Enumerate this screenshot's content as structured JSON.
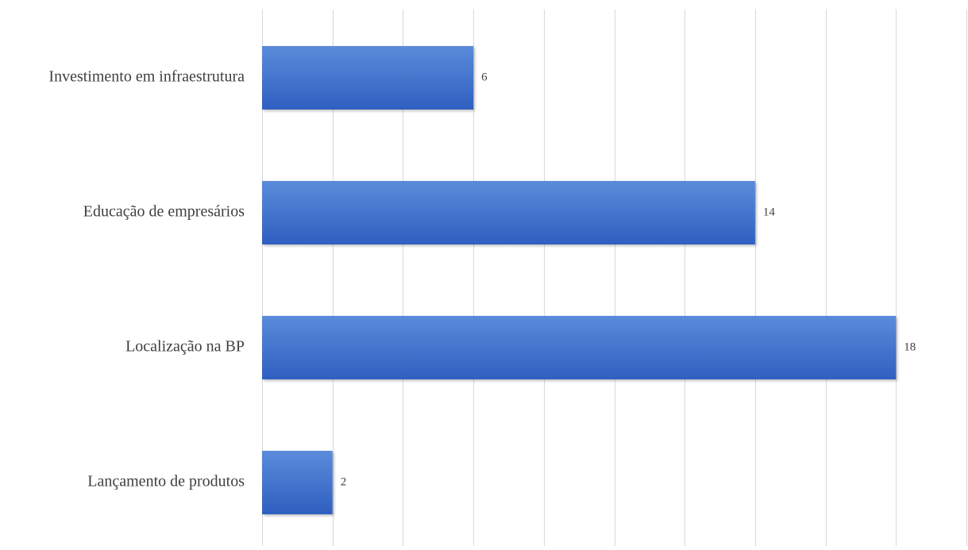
{
  "chart_data": {
    "type": "bar",
    "orientation": "horizontal",
    "title": "",
    "xlabel": "",
    "ylabel": "",
    "categories": [
      "Investimento em infraestrutura",
      "Educação de empresários",
      "Localização na BP",
      "Lançamento de produtos"
    ],
    "values": [
      6,
      14,
      18,
      2
    ],
    "xlim": [
      0,
      20
    ],
    "data_labels": true,
    "grid": "vertical",
    "legend": "none",
    "bar_color": "#4472C4",
    "bar_gradient": [
      "#5B8BDA",
      "#2E5FC0"
    ],
    "grid_color": "#D9D9D9",
    "label_color": "#404040"
  }
}
